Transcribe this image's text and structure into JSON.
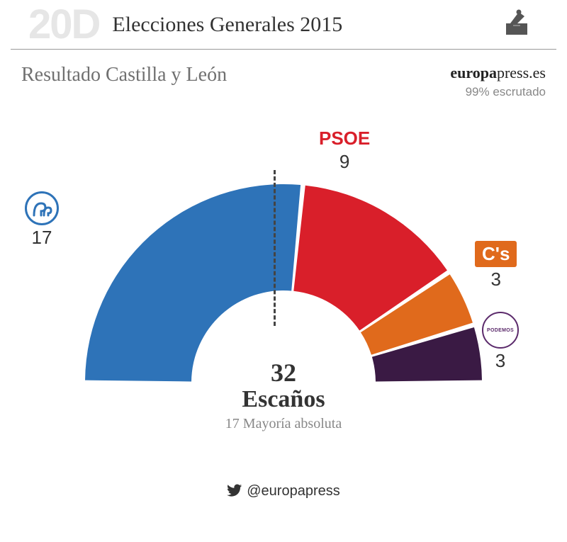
{
  "header": {
    "tag": "20D",
    "title": "Elecciones Generales 2015"
  },
  "subtitle": "Resultado Castilla y León",
  "source": {
    "brand_bold": "europa",
    "brand_rest": "press.es"
  },
  "scrutiny": "99% escrutado",
  "chart": {
    "type": "half-donut",
    "total_seats": 32,
    "seats_label": "Escaños",
    "majority_text": "17 Mayoría absoluta",
    "inner_radius": 130,
    "outer_radius": 280,
    "background": "#ffffff",
    "parties": [
      {
        "id": "pp",
        "name": "PP",
        "seats": 17,
        "color": "#2e73b8",
        "label_color": "#2e73b8",
        "badge": "circle-pp"
      },
      {
        "id": "psoe",
        "name": "PSOE",
        "seats": 9,
        "color": "#d91f2a",
        "label_color": "#d91f2a",
        "badge": "none"
      },
      {
        "id": "cs",
        "name": "C's",
        "seats": 3,
        "color": "#e06a1c",
        "label_color": "#ffffff",
        "badge": "rect-cs"
      },
      {
        "id": "podemos",
        "name": "PODEMOS",
        "seats": 3,
        "color": "#3a1a44",
        "label_color": "#5b2a6b",
        "badge": "circle-podemos"
      }
    ]
  },
  "footer_handle": "@europapress"
}
